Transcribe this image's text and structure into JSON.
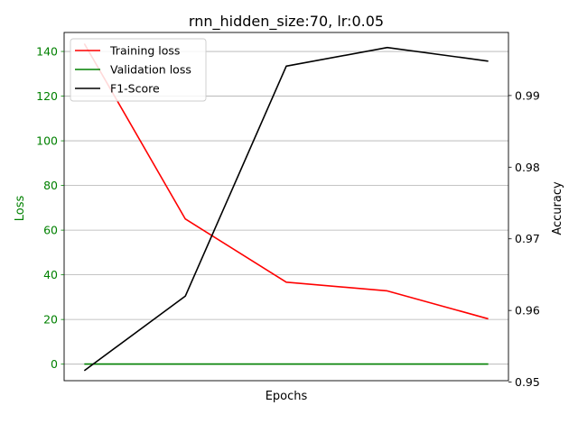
{
  "chart_data": {
    "type": "line",
    "title": "rnn_hidden_size:70, lr:0.05",
    "xlabel": "Epochs",
    "ylabel_left": "Loss",
    "ylabel_right": "Accuracy",
    "x": [
      1,
      2,
      3,
      4,
      5
    ],
    "xlim": [
      0.8,
      5.2
    ],
    "ylim_left": [
      -7.4,
      148.5
    ],
    "ylim_right": [
      0.9502,
      0.9988
    ],
    "yticks_left": [
      0,
      20,
      40,
      60,
      80,
      100,
      120,
      140
    ],
    "yticks_right": [
      0.95,
      0.96,
      0.97,
      0.98,
      0.99
    ],
    "grid": "horizontal (left axis)",
    "legend_position": "top-left",
    "series": [
      {
        "name": "Training loss",
        "axis": "left",
        "color": "#ff0000",
        "values": [
          143.5,
          65,
          36.7,
          32.8,
          20.3
        ]
      },
      {
        "name": "Validation loss",
        "axis": "left",
        "color": "#008000",
        "values": [
          0.05,
          0.04,
          0.03,
          0.03,
          0.03
        ]
      },
      {
        "name": "F1-Score",
        "axis": "right",
        "color": "#000000",
        "values": [
          0.9516,
          0.962,
          0.9941,
          0.9967,
          0.9948
        ]
      }
    ],
    "left_tick_color": "#008000",
    "left_label_color": "#008000"
  }
}
